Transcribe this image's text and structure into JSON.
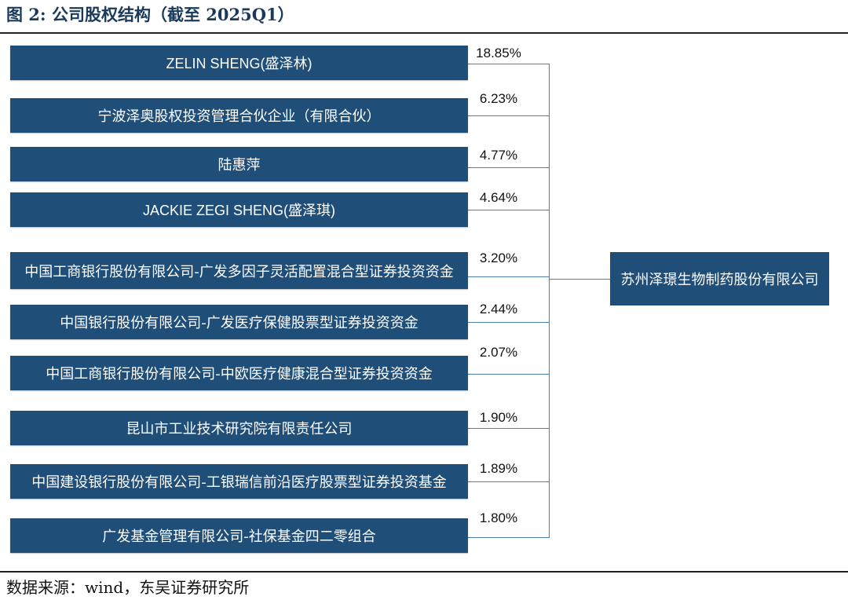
{
  "figure": {
    "title": "图 2:  公司股权结构（截至 2025Q1）",
    "source": "数据来源：wind，东吴证券研究所"
  },
  "company": "苏州泽璟生物制药股份有限公司",
  "shareholders": [
    {
      "name": "ZELIN SHENG(盛泽林)",
      "pct": "18.85%"
    },
    {
      "name": "宁波泽奥股权投资管理合伙企业（有限合伙）",
      "pct": "6.23%"
    },
    {
      "name": "陆惠萍",
      "pct": "4.77%"
    },
    {
      "name": "JACKIE ZEGI SHENG(盛泽琪)",
      "pct": "4.64%"
    },
    {
      "name": "中国工商银行股份有限公司-广发多因子灵活配置混合型证券投资资金",
      "pct": "3.20%"
    },
    {
      "name": "中国银行股份有限公司-广发医疗保健股票型证券投资资金",
      "pct": "2.44%"
    },
    {
      "name": "中国工商银行股份有限公司-中欧医疗健康混合型证券投资资金",
      "pct": "2.07%"
    },
    {
      "name": "昆山市工业技术研究院有限责任公司",
      "pct": "1.90%"
    },
    {
      "name": "中国建设银行股份有限公司-工银瑞信前沿医疗股票型证券投资基金",
      "pct": "1.89%"
    },
    {
      "name": "广发基金管理有限公司-社保基金四二零组合",
      "pct": "1.80%"
    }
  ],
  "colors": {
    "box": "#1f4e79",
    "connector": "#4a7fb0",
    "title": "#1a3a5c"
  }
}
